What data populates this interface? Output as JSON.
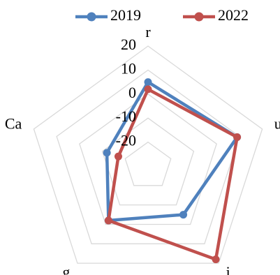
{
  "chart_data": {
    "type": "radar",
    "categories": [
      "r",
      "u",
      "i",
      "g",
      "Ca"
    ],
    "rlim": [
      -30,
      20
    ],
    "ticks": [
      20,
      10,
      0,
      -10,
      -20
    ],
    "tick_labels": [
      "20",
      "10",
      "0",
      "-10",
      "-20"
    ],
    "grid": true,
    "legend": "top",
    "series": [
      {
        "name": "2019",
        "color": "#4F81BD",
        "values": [
          5,
          9,
          -5,
          -2,
          -12
        ]
      },
      {
        "name": "2022",
        "color": "#C0504D",
        "values": [
          2,
          9,
          18,
          -2,
          -17
        ]
      }
    ]
  }
}
